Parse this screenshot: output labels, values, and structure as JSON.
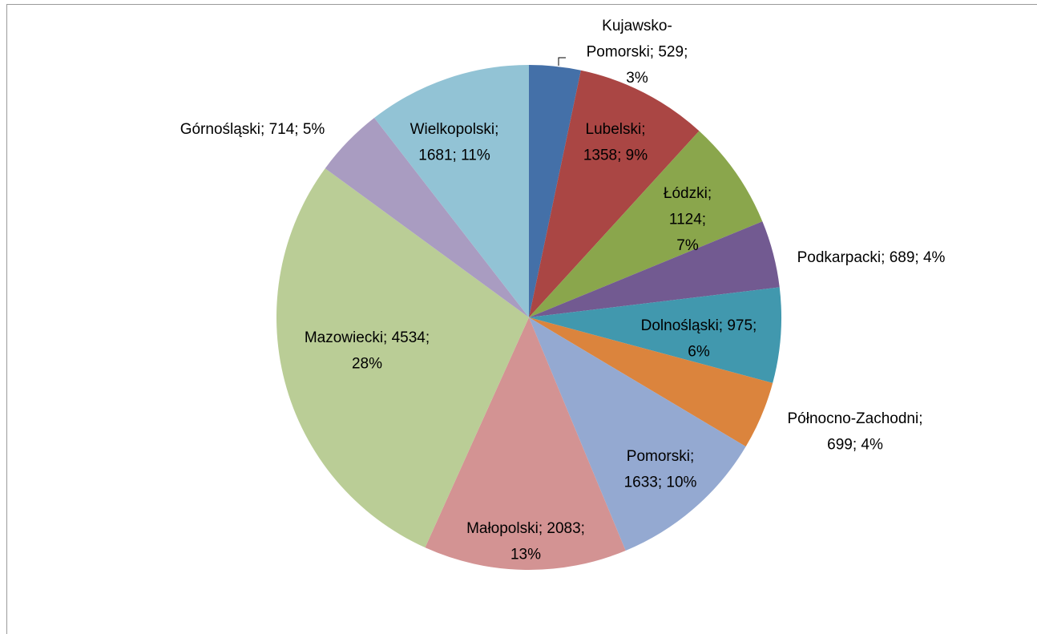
{
  "chart_data": {
    "type": "pie",
    "values": [
      529,
      1358,
      1124,
      689,
      975,
      699,
      1633,
      2083,
      4534,
      714,
      1681
    ],
    "value_labels": [
      "Kujawsko-Pomorski; 529; 3%",
      "Lubelski; 1358; 9%",
      "Łódzki; 1124; 7%",
      "Podkarpacki; 689; 4%",
      "Dolnośląski; 975; 6%",
      "Północno-Zachodni; 699; 4%",
      "Pomorski; 1633; 10%",
      "Małopolski; 2083; 13%",
      "Mazowiecki; 4534; 28%",
      "Górnośląski; 714; 5%",
      "Wielkopolski; 1681; 11%"
    ],
    "colors": [
      "#4470a8",
      "#aa4644",
      "#8aa64c",
      "#725a91",
      "#4198ae",
      "#db843d",
      "#94a9d1",
      "#d39393",
      "#bacd96",
      "#a99cc1",
      "#92c3d5"
    ]
  }
}
